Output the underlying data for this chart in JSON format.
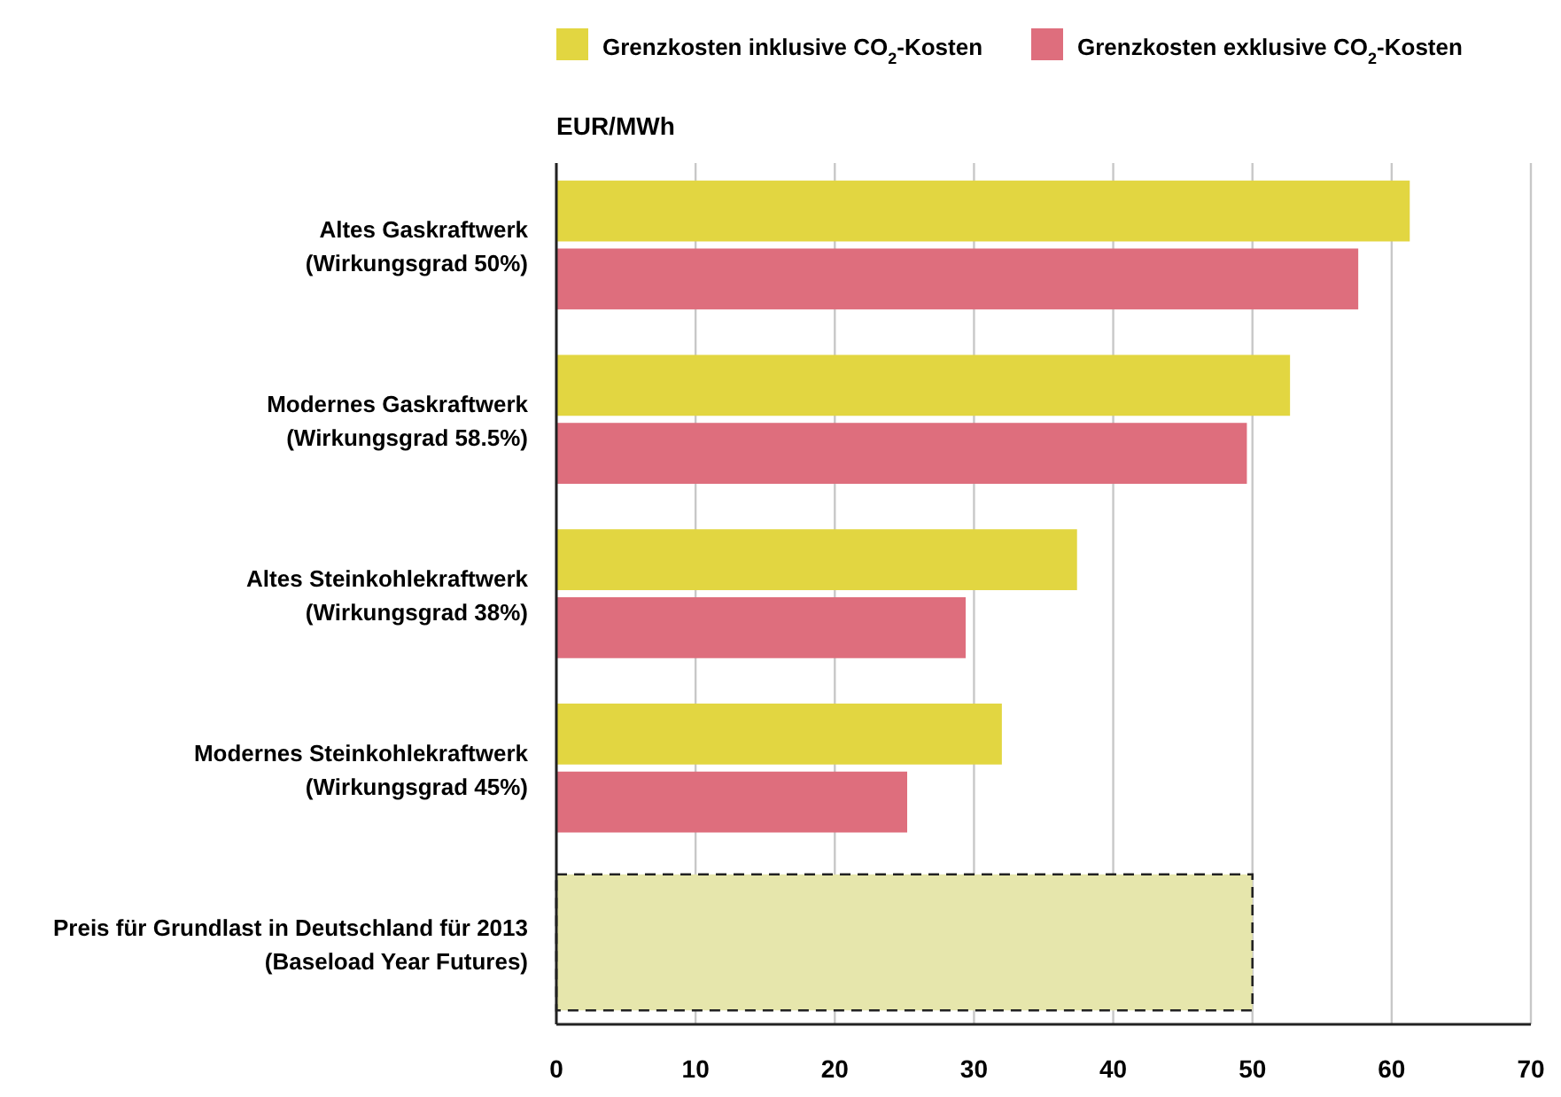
{
  "chart_data": {
    "type": "bar",
    "orientation": "horizontal",
    "xlabel": "EUR/MWh",
    "categories": [
      "Altes Gaskraftwerk\n(Wirkungsgrad 50%)",
      "Modernes Gaskraftwerk\n(Wirkungsgrad 58.5%)",
      "Altes Steinkohlekraftwerk\n(Wirkungsgrad 38%)",
      "Modernes Steinkohlekraftwerk\n(Wirkungsgrad 45%)",
      "Preis für Grundlast in Deutschland für 2013\n(Baseload Year Futures)"
    ],
    "series": [
      {
        "name": "Grenzkosten inklusive CO$_{2}$-Kosten",
        "color": "#e2d641",
        "values": [
          61.3,
          52.7,
          37.4,
          32.0,
          null
        ]
      },
      {
        "name": "Grenzkosten exklusive CO$_{2}$-Kosten",
        "color": "#de6e7d",
        "values": [
          57.6,
          49.6,
          29.4,
          25.2,
          null
        ]
      },
      {
        "color": "#e6e6ac",
        "line_style": "dashed",
        "values": [
          null,
          null,
          null,
          null,
          50
        ]
      }
    ],
    "xlim": [
      0,
      70
    ],
    "xticks": [
      0,
      10,
      20,
      30,
      40,
      50,
      60,
      70
    ],
    "grid": "x",
    "legend": "top"
  }
}
